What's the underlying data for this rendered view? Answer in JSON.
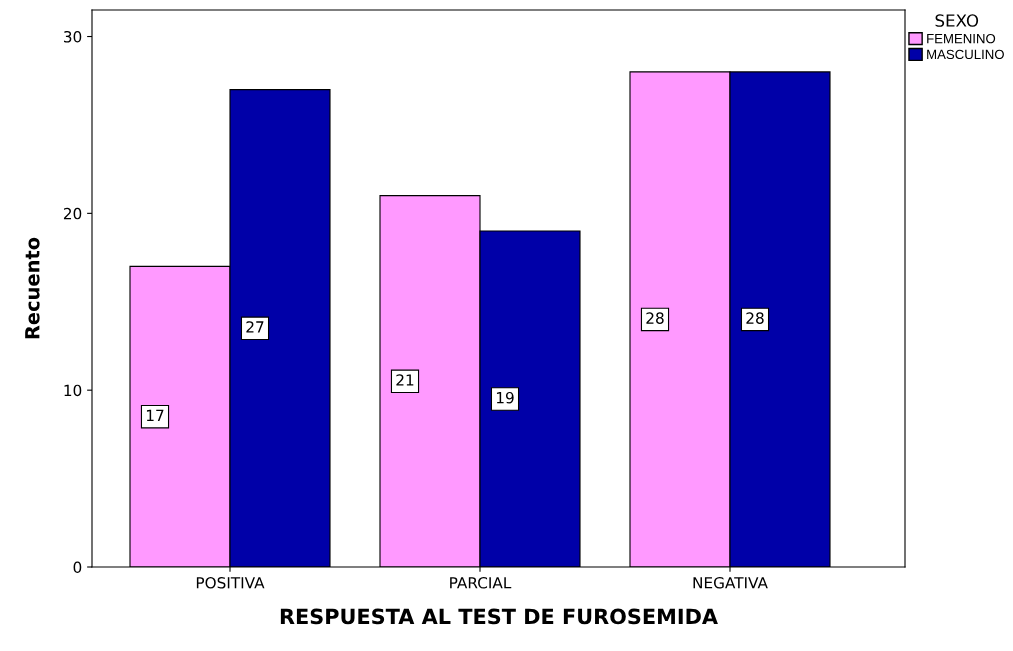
{
  "chart_data": {
    "type": "bar",
    "xlabel": "RESPUESTA AL TEST DE FUROSEMIDA",
    "ylabel": "Recuento",
    "categories": [
      "POSITIVA",
      "PARCIAL",
      "NEGATIVA"
    ],
    "series": [
      {
        "name": "FEMENINO",
        "color": "#ff99ff",
        "values": [
          17,
          21,
          28
        ]
      },
      {
        "name": "MASCULINO",
        "color": "#0000a8",
        "values": [
          27,
          19,
          28
        ]
      }
    ],
    "legend_title": "SEXO",
    "legend": "top right",
    "ylim": [
      0,
      31.5
    ],
    "yticks": [
      0,
      10,
      20,
      30
    ],
    "grid": false,
    "data_labels": true
  }
}
